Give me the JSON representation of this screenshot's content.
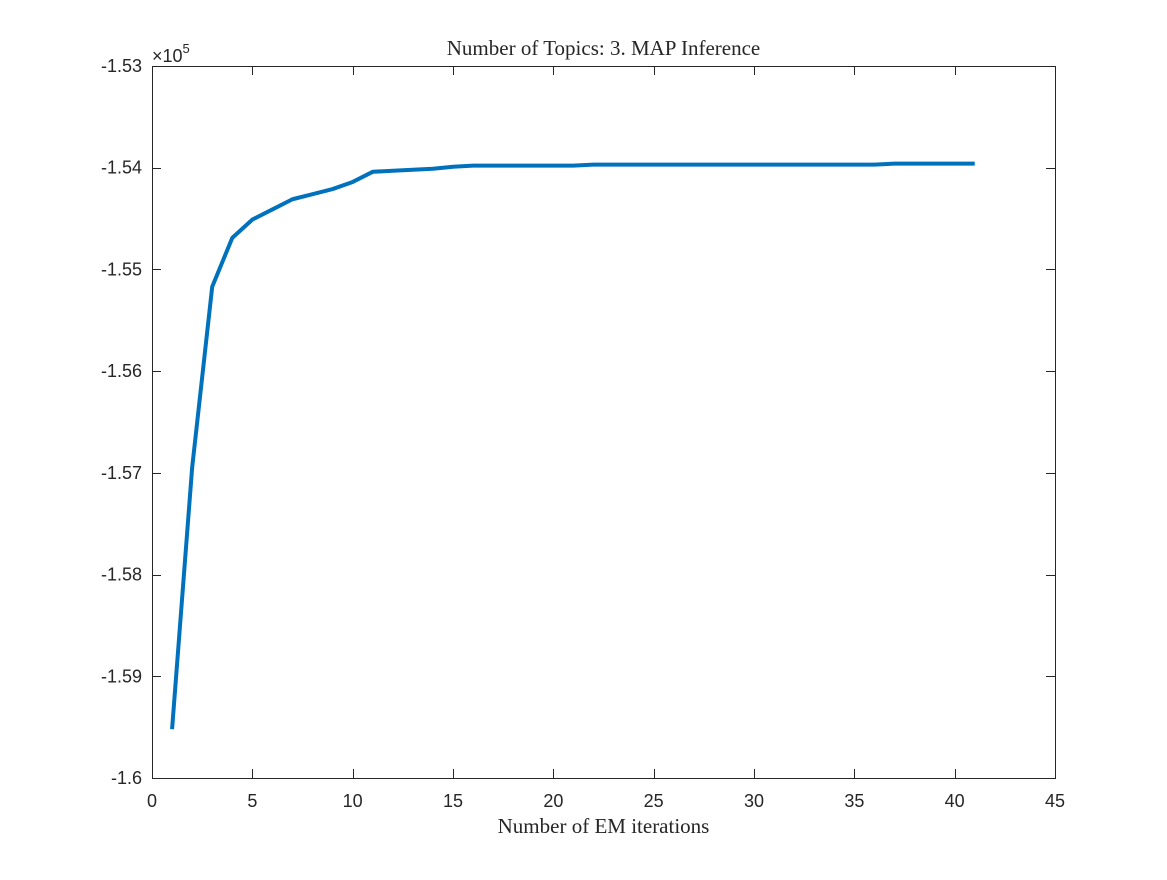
{
  "chart_data": {
    "type": "line",
    "title": "Number of Topics: 3. MAP Inference",
    "xlabel": "Number of EM iterations",
    "ylabel": "",
    "xlim": [
      0,
      45
    ],
    "ylim": [
      -1.6,
      -1.53
    ],
    "y_multiplier_label": "×10",
    "y_multiplier_exponent": "5",
    "x_ticks": [
      0,
      5,
      10,
      15,
      20,
      25,
      30,
      35,
      40,
      45
    ],
    "x_tick_labels": [
      "0",
      "5",
      "10",
      "15",
      "20",
      "25",
      "30",
      "35",
      "40",
      "45"
    ],
    "y_ticks": [
      -1.6,
      -1.59,
      -1.58,
      -1.57,
      -1.56,
      -1.55,
      -1.54,
      -1.53
    ],
    "y_tick_labels": [
      "-1.6",
      "-1.59",
      "-1.58",
      "-1.57",
      "-1.56",
      "-1.55",
      "-1.54",
      "-1.53"
    ],
    "grid": false,
    "legend": "none",
    "series": [
      {
        "color": "#0072bd",
        "x": [
          1,
          2,
          3,
          4,
          5,
          6,
          7,
          8,
          9,
          10,
          11,
          12,
          13,
          14,
          15,
          16,
          17,
          18,
          19,
          20,
          21,
          22,
          23,
          24,
          25,
          26,
          27,
          28,
          29,
          30,
          31,
          32,
          33,
          34,
          35,
          36,
          37,
          38,
          39,
          40,
          41
        ],
        "y": [
          -1.5952,
          -1.5695,
          -1.5517,
          -1.5469,
          -1.5451,
          -1.5441,
          -1.5431,
          -1.5426,
          -1.5421,
          -1.5414,
          -1.5404,
          -1.5403,
          -1.5402,
          -1.5401,
          -1.5399,
          -1.5398,
          -1.5398,
          -1.5398,
          -1.5398,
          -1.5398,
          -1.5398,
          -1.5397,
          -1.5397,
          -1.5397,
          -1.5397,
          -1.5397,
          -1.5397,
          -1.5397,
          -1.5397,
          -1.5397,
          -1.5397,
          -1.5397,
          -1.5397,
          -1.5397,
          -1.5397,
          -1.5397,
          -1.5396,
          -1.5396,
          -1.5396,
          -1.5396,
          -1.5396
        ]
      }
    ]
  }
}
